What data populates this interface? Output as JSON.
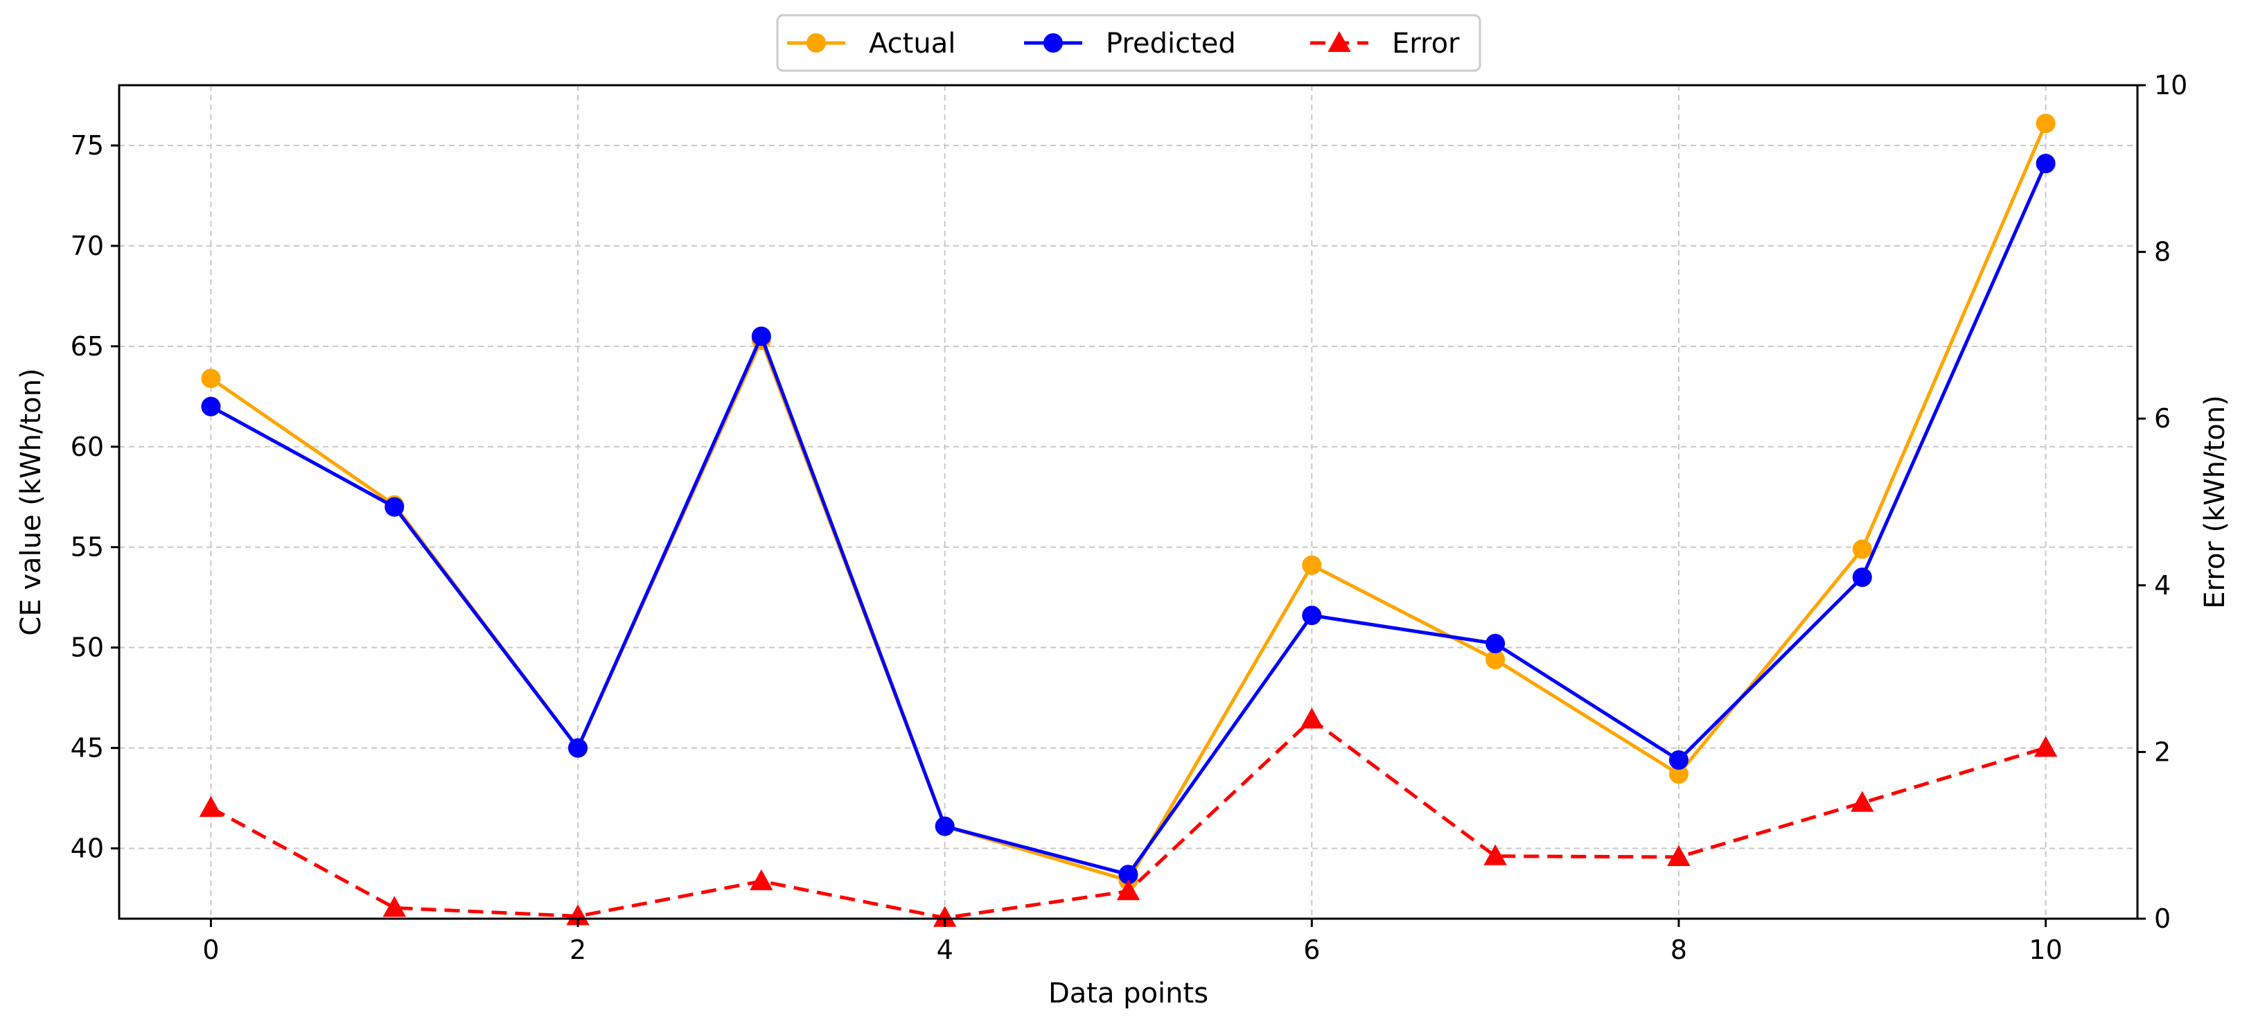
{
  "chart_data": {
    "type": "line",
    "title": "",
    "xlabel": "Data points",
    "ylabel": "CE value (kWh/ton)",
    "y2label": "Error (kWh/ton)",
    "x": [
      0,
      1,
      2,
      3,
      4,
      5,
      6,
      7,
      8,
      9,
      10
    ],
    "xlim": [
      -0.5,
      10.5
    ],
    "ylim": [
      36.5,
      78
    ],
    "y2lim": [
      0,
      10
    ],
    "xticks": [
      "0",
      "2",
      "4",
      "6",
      "8",
      "10"
    ],
    "yticks": [
      "40",
      "45",
      "50",
      "55",
      "60",
      "65",
      "70",
      "75"
    ],
    "y2ticks": [
      "0",
      "2",
      "4",
      "6",
      "8",
      "10"
    ],
    "grid": true,
    "legend_position": "top-center",
    "series": [
      {
        "name": "Actual",
        "axis": "left",
        "color": "#FFA500",
        "marker": "circle",
        "linestyle": "solid",
        "values": [
          63.4,
          57.1,
          45.0,
          65.3,
          41.1,
          38.4,
          54.1,
          49.4,
          43.7,
          54.9,
          76.1
        ]
      },
      {
        "name": "Predicted",
        "axis": "left",
        "color": "#0000FF",
        "marker": "circle",
        "linestyle": "solid",
        "values": [
          62.0,
          57.0,
          45.0,
          65.5,
          41.1,
          38.7,
          51.6,
          50.2,
          44.4,
          53.5,
          74.1
        ]
      },
      {
        "name": "Error",
        "axis": "right",
        "color": "#FF0000",
        "marker": "triangle",
        "linestyle": "dashed",
        "values": [
          1.33,
          0.13,
          0.03,
          0.45,
          0.01,
          0.33,
          2.39,
          0.75,
          0.74,
          1.39,
          2.05
        ]
      }
    ]
  }
}
